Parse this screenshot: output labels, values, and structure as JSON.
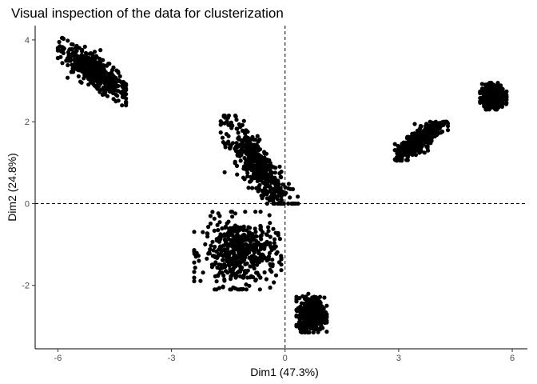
{
  "chart_data": {
    "type": "scatter",
    "title": "Visual inspection of the data for clusterization",
    "xlabel": "Dim1 (47.3%)",
    "ylabel": "Dim2 (24.8%)",
    "xlim": [
      -6.6,
      6.4
    ],
    "ylim": [
      -3.55,
      4.35
    ],
    "x_ticks": [
      -6,
      -3,
      0,
      3,
      6
    ],
    "y_ticks": [
      -2,
      0,
      2,
      4
    ],
    "x_tick_labels": [
      "-6",
      "-3",
      "0",
      "3",
      "6"
    ],
    "y_tick_labels": [
      "-2",
      "0",
      "2",
      "4"
    ],
    "reference_lines": {
      "x": 0,
      "y": 0,
      "style": "dashed"
    },
    "grid": false,
    "point_color": "#000000",
    "clusters": [
      {
        "center_x": -5.0,
        "center_y": 3.2,
        "shape": "elongated",
        "angle_deg": -36,
        "approx_x_range": [
          -6.0,
          -4.2
        ],
        "approx_y_range": [
          2.4,
          4.05
        ]
      },
      {
        "center_x": -0.75,
        "center_y": 0.95,
        "shape": "elongated",
        "angle_deg": -53,
        "approx_x_range": [
          -1.7,
          0.4
        ],
        "approx_y_range": [
          0.0,
          2.15
        ]
      },
      {
        "center_x": -1.2,
        "center_y": -1.2,
        "shape": "blob",
        "approx_x_range": [
          -2.4,
          -0.1
        ],
        "approx_y_range": [
          -2.1,
          -0.2
        ]
      },
      {
        "center_x": 0.7,
        "center_y": -2.7,
        "shape": "blob",
        "approx_x_range": [
          0.3,
          1.1
        ],
        "approx_y_range": [
          -3.15,
          -2.2
        ]
      },
      {
        "center_x": 3.55,
        "center_y": 1.55,
        "shape": "elongated",
        "angle_deg": 36,
        "approx_x_range": [
          2.9,
          4.3
        ],
        "approx_y_range": [
          1.05,
          2.0
        ]
      },
      {
        "center_x": 5.5,
        "center_y": 2.62,
        "shape": "blob",
        "approx_x_range": [
          5.15,
          5.85
        ],
        "approx_y_range": [
          2.3,
          2.95
        ]
      }
    ]
  }
}
